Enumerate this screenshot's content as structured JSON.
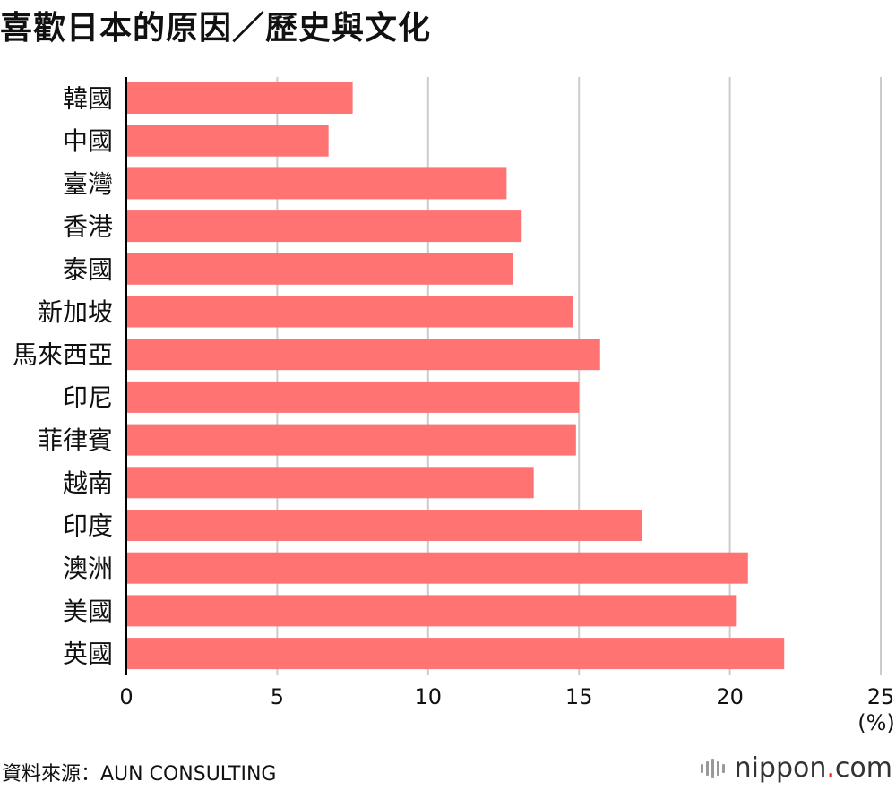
{
  "title": "喜歡日本的原因／歷史與文化",
  "source": "資料來源：AUN CONSULTING",
  "logo": {
    "name": "nippon",
    "dot": ".",
    "suffix": "com"
  },
  "colors": {
    "bar": "#ff7373",
    "grid": "#cccccc",
    "axis": "#000000"
  },
  "chart_data": {
    "type": "bar",
    "orientation": "horizontal",
    "unit": "(%)",
    "xlim": [
      0,
      25
    ],
    "xticks": [
      0,
      5,
      10,
      15,
      20,
      25
    ],
    "grid": true,
    "categories": [
      "韓國",
      "中國",
      "臺灣",
      "香港",
      "泰國",
      "新加坡",
      "馬來西亞",
      "印尼",
      "菲律賓",
      "越南",
      "印度",
      "澳洲",
      "美國",
      "英國"
    ],
    "values": [
      7.5,
      6.7,
      12.6,
      13.1,
      12.8,
      14.8,
      15.7,
      15.0,
      14.9,
      13.5,
      17.1,
      20.6,
      20.2,
      21.8
    ]
  }
}
